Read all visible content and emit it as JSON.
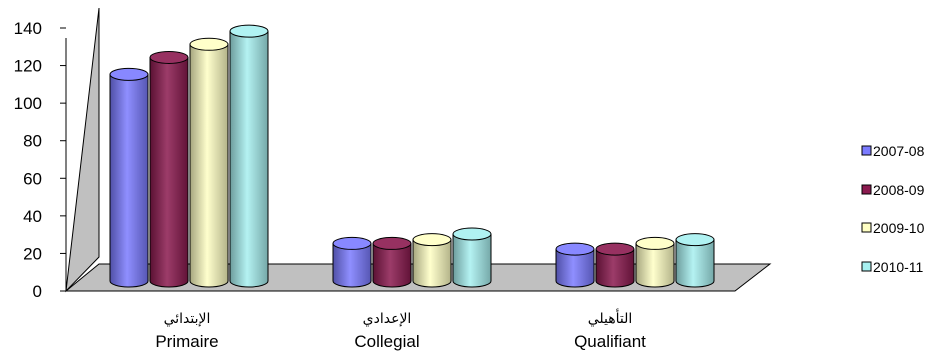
{
  "chart_data": {
    "type": "bar",
    "style": "3d-cylinder",
    "categories": [
      {
        "label": "Primaire",
        "label_ar": "الإبتدائي"
      },
      {
        "label": "Collegial",
        "label_ar": "الإعدادي"
      },
      {
        "label": "Qualifiant",
        "label_ar": "التأهيلي"
      }
    ],
    "series": [
      {
        "name": "2007-08",
        "color": "#7b7bff",
        "values": [
          110,
          20,
          17
        ]
      },
      {
        "name": "2008-09",
        "color": "#8b1a4f",
        "values": [
          119,
          20,
          17
        ]
      },
      {
        "name": "2009-10",
        "color": "#ffffc4",
        "values": [
          126,
          22,
          20
        ]
      },
      {
        "name": "2010-11",
        "color": "#a7f0f0",
        "values": [
          133,
          25,
          22
        ]
      }
    ],
    "ylim": [
      0,
      140
    ],
    "yticks": [
      "0",
      "20",
      "40",
      "60",
      "80",
      "100",
      "120",
      "140"
    ],
    "legend_position": "right",
    "grid": false
  }
}
